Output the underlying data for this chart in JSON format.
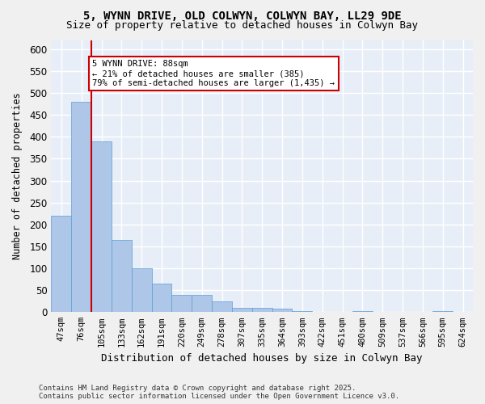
{
  "title_line1": "5, WYNN DRIVE, OLD COLWYN, COLWYN BAY, LL29 9DE",
  "title_line2": "Size of property relative to detached houses in Colwyn Bay",
  "xlabel": "Distribution of detached houses by size in Colwyn Bay",
  "ylabel": "Number of detached properties",
  "footer_line1": "Contains HM Land Registry data © Crown copyright and database right 2025.",
  "footer_line2": "Contains public sector information licensed under the Open Government Licence v3.0.",
  "categories": [
    "47sqm",
    "76sqm",
    "105sqm",
    "133sqm",
    "162sqm",
    "191sqm",
    "220sqm",
    "249sqm",
    "278sqm",
    "307sqm",
    "335sqm",
    "364sqm",
    "393sqm",
    "422sqm",
    "451sqm",
    "480sqm",
    "509sqm",
    "537sqm",
    "566sqm",
    "595sqm",
    "624sqm"
  ],
  "values": [
    220,
    480,
    390,
    165,
    100,
    65,
    40,
    40,
    25,
    10,
    10,
    8,
    3,
    0,
    0,
    3,
    0,
    0,
    0,
    3,
    0
  ],
  "bar_color": "#aec6e8",
  "bar_edge_color": "#5a9fd4",
  "background_color": "#e8eef8",
  "grid_color": "#ffffff",
  "ylim": [
    0,
    620
  ],
  "yticks": [
    0,
    50,
    100,
    150,
    200,
    250,
    300,
    350,
    400,
    450,
    500,
    550,
    600
  ],
  "annotation_text": "5 WYNN DRIVE: 88sqm\n← 21% of detached houses are smaller (385)\n79% of semi-detached houses are larger (1,435) →",
  "vline_x_index": 1,
  "vline_color": "#cc0000",
  "annotation_box_color": "#cc0000"
}
